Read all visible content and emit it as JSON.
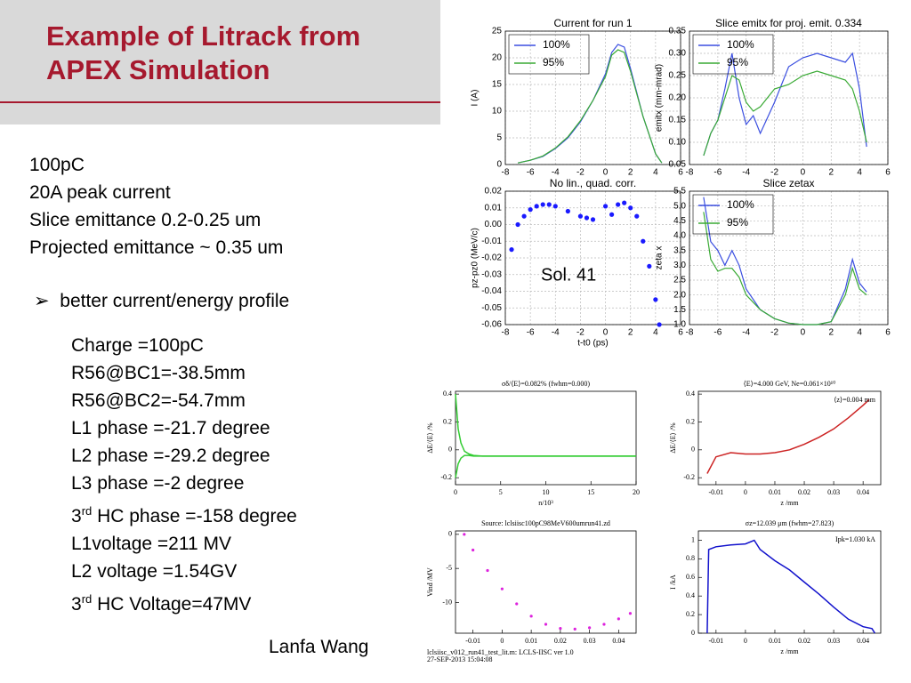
{
  "slide": {
    "title_lines": [
      "Example of Litrack from",
      "APEX Simulation"
    ],
    "summary": [
      "100pC",
      "20A peak current",
      "Slice emittance 0.2-0.25 um",
      "Projected emittance ~ 0.35 um"
    ],
    "bullet": "better current/energy profile",
    "params": [
      {
        "text": "Charge =100pC"
      },
      {
        "text": "R56@BC1=-38.5mm"
      },
      {
        "text": "R56@BC2=-54.7mm"
      },
      {
        "text": "L1 phase =-21.7 degree"
      },
      {
        "text": "L2 phase =-29.2 degree"
      },
      {
        "text": "L3 phase =-2 degree"
      },
      {
        "pre": "3",
        "sup": "rd",
        "post": " HC phase =-158 degree"
      },
      {
        "text": "L1voltage =211 MV"
      },
      {
        "text": "L2 voltage =1.54GV"
      },
      {
        "pre": "3",
        "sup": "rd",
        "post": " HC Voltage=47MV"
      }
    ],
    "author": "Lanfa Wang",
    "plot_footer": [
      "lclsiisc_v012_run41_test_lit.m: LCLS-IISC ver 1.0",
      "27-SEP-2013 15:04:08"
    ]
  },
  "chart_data": [
    {
      "type": "line",
      "title": "Current for run 1",
      "ylabel": "I (A)",
      "grid": true,
      "xlim": [
        -8,
        6
      ],
      "ylim": [
        0,
        25
      ],
      "xticks": [
        -8,
        -6,
        -4,
        -2,
        0,
        2,
        4,
        6
      ],
      "yticks": [
        0,
        5,
        10,
        15,
        20,
        25
      ],
      "series": [
        {
          "name": "100%",
          "color": "#3b4fe0",
          "x": [
            -7,
            -6,
            -5,
            -4,
            -3,
            -2,
            -1,
            0,
            0.5,
            1,
            1.5,
            2,
            3,
            4,
            4.5
          ],
          "values": [
            0.3,
            0.8,
            1.5,
            3,
            5,
            8,
            12,
            17,
            21,
            22.5,
            22,
            18,
            9,
            2,
            0.3
          ]
        },
        {
          "name": "95%",
          "color": "#3aaa35",
          "x": [
            -7,
            -6,
            -5,
            -4,
            -3,
            -2,
            -1,
            0,
            0.5,
            1,
            1.5,
            2,
            3,
            4,
            4.5
          ],
          "values": [
            0.3,
            0.8,
            1.6,
            3.1,
            5.2,
            8.2,
            12,
            16.5,
            20.5,
            21.5,
            21,
            17.5,
            9,
            2,
            0.3
          ]
        }
      ]
    },
    {
      "type": "line",
      "title": "Slice emitx for proj. emit. 0.334",
      "ylabel": "emitx (mm-mrad)",
      "grid": true,
      "xlim": [
        -8,
        6
      ],
      "ylim": [
        0.05,
        0.35
      ],
      "xticks": [
        -8,
        -6,
        -4,
        -2,
        0,
        2,
        4,
        6
      ],
      "yticks": [
        0.05,
        {
          "value": 0.1,
          "label": "0.10"
        },
        0.15,
        {
          "value": 0.2,
          "label": "0.20"
        },
        0.25,
        {
          "value": 0.3,
          "label": "0.30"
        },
        0.35
      ],
      "series": [
        {
          "name": "100%",
          "color": "#3b4fe0",
          "x": [
            -7,
            -6.5,
            -6,
            -5.5,
            -5,
            -4.5,
            -4,
            -3.5,
            -3,
            -2,
            -1,
            0,
            1,
            2,
            3,
            3.5,
            4,
            4.5
          ],
          "values": [
            0.07,
            0.12,
            0.15,
            0.22,
            0.3,
            0.2,
            0.14,
            0.16,
            0.12,
            0.19,
            0.27,
            0.29,
            0.3,
            0.29,
            0.28,
            0.3,
            0.22,
            0.09
          ]
        },
        {
          "name": "95%",
          "color": "#3aaa35",
          "x": [
            -7,
            -6.5,
            -6,
            -5.5,
            -5,
            -4.5,
            -4,
            -3.5,
            -3,
            -2,
            -1,
            0,
            1,
            2,
            3,
            3.5,
            4,
            4.5
          ],
          "values": [
            0.07,
            0.12,
            0.15,
            0.2,
            0.25,
            0.24,
            0.19,
            0.17,
            0.18,
            0.22,
            0.23,
            0.25,
            0.26,
            0.25,
            0.24,
            0.22,
            0.17,
            0.1
          ]
        }
      ]
    },
    {
      "type": "scatter",
      "title": "No lin., quad. corr.",
      "ylabel": "pz-pz0 (MeV/c)",
      "xlabel": "t-t0 (ps)",
      "annotation": "Sol. 41",
      "grid": true,
      "xlim": [
        -8,
        6
      ],
      "ylim": [
        -0.06,
        0.02
      ],
      "xticks": [
        -8,
        -6,
        -4,
        -2,
        0,
        2,
        4,
        6
      ],
      "yticks": [
        -0.06,
        -0.05,
        -0.04,
        -0.03,
        -0.02,
        -0.01,
        {
          "value": 0,
          "label": "0.00"
        },
        0.01,
        0.02
      ],
      "series": [
        {
          "color": "#1a1aff",
          "x": [
            -7.5,
            -7,
            -6.5,
            -6,
            -5.5,
            -5,
            -4.5,
            -4,
            -3,
            -2,
            -1.5,
            -1,
            0,
            0.5,
            1,
            1.5,
            2,
            2.5,
            3,
            3.5,
            4,
            4.3
          ],
          "values": [
            -0.015,
            0,
            0.005,
            0.009,
            0.011,
            0.012,
            0.012,
            0.011,
            0.008,
            0.005,
            0.004,
            0.003,
            0.011,
            0.006,
            0.012,
            0.013,
            0.01,
            0.005,
            -0.01,
            -0.025,
            -0.045,
            -0.06
          ]
        }
      ]
    },
    {
      "type": "line",
      "title": "Slice zetax",
      "ylabel": "zeta x",
      "grid": true,
      "xlim": [
        -8,
        6
      ],
      "ylim": [
        1,
        5.5
      ],
      "xticks": [
        -8,
        -6,
        -4,
        -2,
        0,
        2,
        4,
        6
      ],
      "yticks": [
        {
          "value": 1,
          "label": "1.0"
        },
        1.5,
        {
          "value": 2,
          "label": "2.0"
        },
        2.5,
        {
          "value": 3,
          "label": "3.0"
        },
        3.5,
        {
          "value": 4,
          "label": "4.0"
        },
        4.5,
        {
          "value": 5,
          "label": "5.0"
        },
        5.5
      ],
      "series": [
        {
          "name": "100%",
          "color": "#3b4fe0",
          "x": [
            -7,
            -6.5,
            -6,
            -5.5,
            -5,
            -4.5,
            -4,
            -3,
            -2,
            -1,
            0,
            1,
            2,
            3,
            3.5,
            4,
            4.5
          ],
          "values": [
            5.3,
            3.8,
            3.5,
            3,
            3.5,
            3,
            2.2,
            1.5,
            1.2,
            1.05,
            1,
            1,
            1.1,
            2.2,
            3.2,
            2.4,
            2.1
          ]
        },
        {
          "name": "95%",
          "color": "#3aaa35",
          "x": [
            -7,
            -6.5,
            -6,
            -5.5,
            -5,
            -4.5,
            -4,
            -3,
            -2,
            -1,
            0,
            1,
            2,
            3,
            3.5,
            4,
            4.5
          ],
          "values": [
            4.8,
            3.2,
            2.8,
            2.9,
            2.9,
            2.6,
            2,
            1.5,
            1.2,
            1.05,
            1,
            1,
            1.1,
            2,
            2.9,
            2.2,
            2
          ]
        }
      ]
    },
    {
      "type": "line",
      "title": "σδ/⟨E⟩=0.082% (fwhm=0.000)",
      "ylabel": "ΔE/⟨E⟩ /%",
      "xlabel": "n/10³",
      "grid": false,
      "xlim": [
        0,
        20
      ],
      "ylim": [
        -0.25,
        0.42
      ],
      "xticks": [
        0,
        5,
        10,
        15,
        20
      ],
      "yticks": [
        -0.2,
        0,
        0.2,
        0.4
      ],
      "series": [
        {
          "color": "#33cc33",
          "x": [
            0,
            0.3,
            0.6,
            1,
            1.5,
            2,
            3,
            5,
            10,
            15,
            20
          ],
          "values": [
            0.4,
            0.15,
            0.05,
            -0.01,
            -0.03,
            -0.04,
            -0.045,
            -0.045,
            -0.045,
            -0.045,
            -0.045
          ]
        },
        {
          "color": "#33cc33",
          "x": [
            0,
            0.3,
            0.6,
            1,
            1.5,
            2,
            3,
            5,
            10,
            15,
            20
          ],
          "values": [
            -0.2,
            -0.1,
            -0.06,
            -0.04,
            -0.04,
            -0.045,
            -0.045,
            -0.045,
            -0.045,
            -0.045,
            -0.045
          ]
        }
      ]
    },
    {
      "type": "line",
      "title": "⟨E⟩=4.000 GeV, Ne=0.061×10¹⁰",
      "annotation": "⟨z⟩=0.004 mm",
      "ylabel": "ΔE/⟨E⟩ /%",
      "xlabel": "z /mm",
      "grid": false,
      "xlim": [
        -0.016,
        0.046
      ],
      "ylim": [
        -0.25,
        0.42
      ],
      "xticks": [
        -0.01,
        0,
        0.01,
        0.02,
        0.03,
        0.04
      ],
      "yticks": [
        -0.2,
        0,
        0.2,
        0.4
      ],
      "series": [
        {
          "color": "#cc2222",
          "x": [
            -0.013,
            -0.01,
            -0.005,
            0,
            0.005,
            0.01,
            0.015,
            0.02,
            0.025,
            0.03,
            0.035,
            0.04,
            0.042
          ],
          "values": [
            -0.17,
            -0.05,
            -0.02,
            -0.03,
            -0.03,
            -0.02,
            0,
            0.04,
            0.09,
            0.15,
            0.23,
            0.32,
            0.36
          ]
        }
      ]
    },
    {
      "type": "scatter",
      "title": "Source: lclsiisc100pC98MeV600umrun41.zd",
      "ylabel": "Vind /MV",
      "grid": false,
      "xlim": [
        -0.016,
        0.046
      ],
      "ylim": [
        -14.5,
        0.5
      ],
      "xticks": [
        -0.01,
        0,
        0.01,
        0.02,
        0.03,
        0.04
      ],
      "yticks": [
        -10,
        -5,
        0
      ],
      "series": [
        {
          "color": "#dd22dd",
          "x": [
            -0.013,
            -0.01,
            -0.005,
            0,
            0.005,
            0.01,
            0.015,
            0.02,
            0.025,
            0.03,
            0.035,
            0.04,
            0.044
          ],
          "values": [
            0,
            -2.3,
            -5.3,
            -8,
            -10.2,
            -12,
            -13.2,
            -13.8,
            -13.9,
            -13.7,
            -13.2,
            -12.4,
            -11.6
          ]
        }
      ]
    },
    {
      "type": "line",
      "title": "σz=12.039 μm (fwhm=27.823)",
      "annotation": "Ipk=1.030 kA",
      "ylabel": "I /kA",
      "xlabel": "z /mm",
      "grid": false,
      "xlim": [
        -0.016,
        0.046
      ],
      "ylim": [
        0,
        1.1
      ],
      "xticks": [
        -0.01,
        0,
        0.01,
        0.02,
        0.03,
        0.04
      ],
      "yticks": [
        0,
        0.2,
        0.4,
        0.6,
        0.8,
        1
      ],
      "series": [
        {
          "color": "#1111cc",
          "x": [
            -0.013,
            -0.0125,
            -0.01,
            -0.005,
            0,
            0.003,
            0.005,
            0.01,
            0.015,
            0.02,
            0.025,
            0.03,
            0.035,
            0.04,
            0.043,
            0.044
          ],
          "values": [
            0,
            0.9,
            0.93,
            0.95,
            0.96,
            1,
            0.9,
            0.78,
            0.68,
            0.55,
            0.42,
            0.28,
            0.15,
            0.07,
            0.05,
            0
          ]
        }
      ]
    }
  ]
}
